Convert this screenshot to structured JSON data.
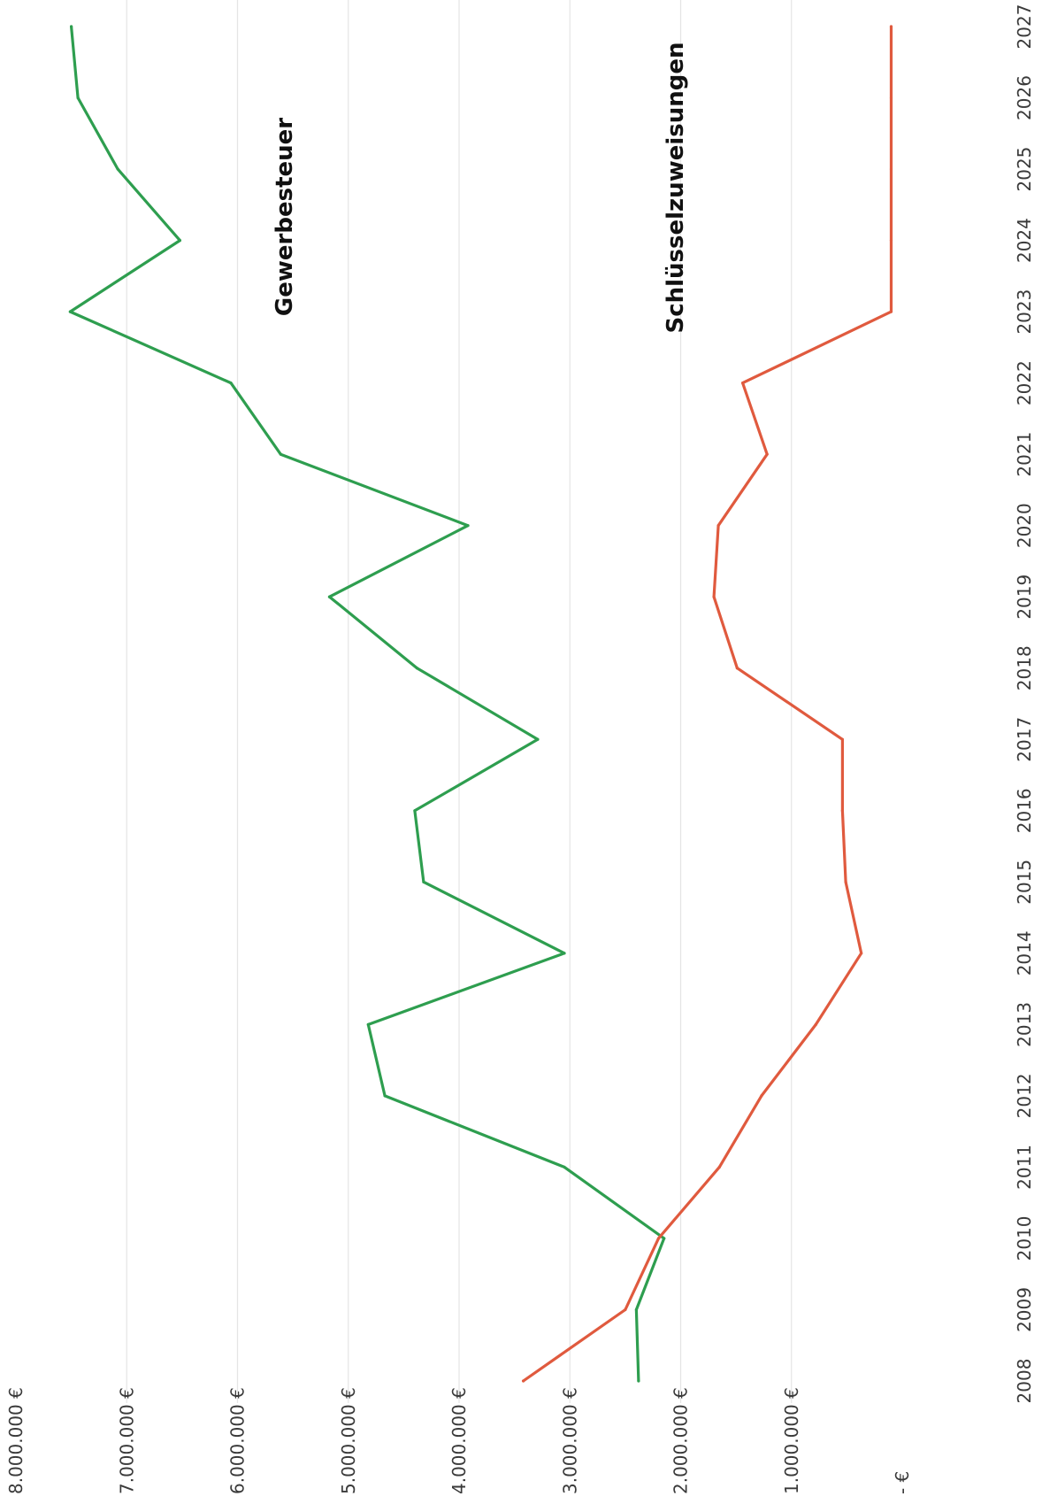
{
  "chart_data": {
    "type": "line",
    "title": "",
    "xlabel": "",
    "ylabel": "",
    "x": [
      "2008",
      "2009",
      "2010",
      "2011",
      "2012",
      "2013",
      "2014",
      "2015",
      "2016",
      "2017",
      "2018",
      "2019",
      "2020",
      "2021",
      "2022",
      "2023",
      "2024",
      "2025",
      "2026",
      "2027"
    ],
    "ylim": [
      0,
      8000000
    ],
    "y_ticks": [
      0,
      1000000,
      2000000,
      3000000,
      4000000,
      5000000,
      6000000,
      7000000,
      8000000
    ],
    "y_tick_labels": [
      "- €",
      "1.000.000 €",
      "2.000.000 €",
      "3.000.000 €",
      "4.000.000 €",
      "5.000.000 €",
      "6.000.000 €",
      "7.000.000 €",
      "8.000.000 €"
    ],
    "grid": true,
    "orientation": "rotated 90° counter-clockwise",
    "series": [
      {
        "name": "Gewerbesteuer",
        "color": "#2e9e4f",
        "values": [
          2380000,
          2400000,
          2150000,
          3050000,
          4670000,
          4820000,
          3050000,
          4320000,
          4400000,
          3290000,
          4380000,
          5170000,
          3920000,
          5610000,
          6060000,
          7510000,
          6520000,
          7080000,
          7440000,
          7500000
        ]
      },
      {
        "name": "Schlüsselzuweisungen",
        "color": "#e05a3e",
        "values": [
          3420000,
          2500000,
          2200000,
          1650000,
          1270000,
          780000,
          370000,
          510000,
          540000,
          540000,
          1490000,
          1700000,
          1660000,
          1220000,
          1440000,
          100000,
          100000,
          100000,
          100000,
          100000
        ]
      }
    ]
  }
}
